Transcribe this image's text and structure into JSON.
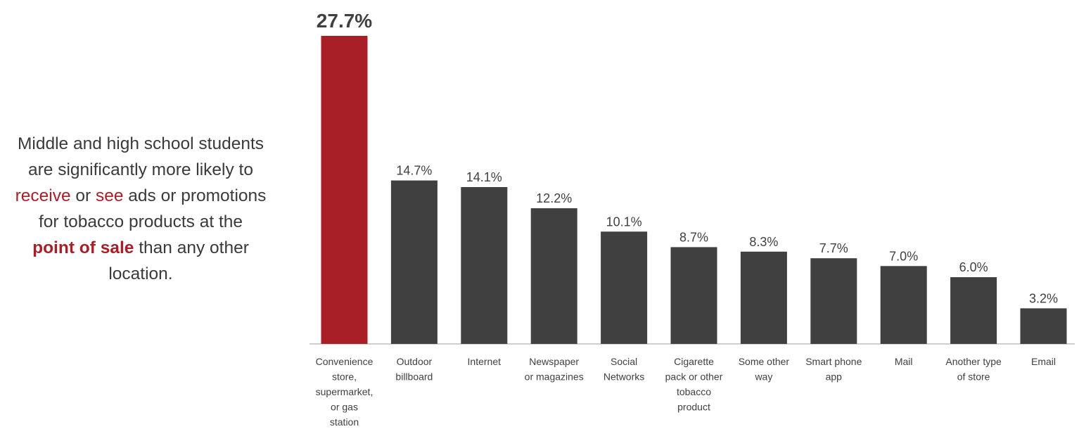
{
  "callout": {
    "line1": "Middle and high school students",
    "line2": "are significantly more likely to",
    "line3_word1": "receive",
    "line3_mid": " or ",
    "line3_word2": "see",
    "line3_rest": " ads or promotions",
    "line4": "for tobacco products at the",
    "line5_bold": "point of sale",
    "line5_rest": " than any other",
    "line6": "location."
  },
  "colors": {
    "highlight": "#a81f28",
    "bar": "#404040",
    "axis": "#bfbfbf",
    "text": "#404040"
  },
  "chart_data": {
    "type": "bar",
    "categories": [
      [
        "Convenience",
        "store,",
        "supermarket,",
        "or gas",
        "station"
      ],
      [
        "Outdoor",
        "billboard"
      ],
      [
        "Internet"
      ],
      [
        "Newspaper",
        "or magazines"
      ],
      [
        "Social",
        "Networks"
      ],
      [
        "Cigarette",
        "pack or other",
        "tobacco",
        "product"
      ],
      [
        "Some other",
        "way"
      ],
      [
        "Smart phone",
        "app"
      ],
      [
        "Mail"
      ],
      [
        "Another type",
        "of store"
      ],
      [
        "Email"
      ]
    ],
    "values": [
      27.7,
      14.7,
      14.1,
      12.2,
      10.1,
      8.7,
      8.3,
      7.7,
      7.0,
      6.0,
      3.2
    ],
    "labels": [
      "27.7%",
      "14.7%",
      "14.1%",
      "12.2%",
      "10.1%",
      "8.7%",
      "8.3%",
      "7.7%",
      "7.0%",
      "6.0%",
      "3.2%"
    ],
    "highlight_index": 0,
    "ylim": [
      0,
      27.7
    ],
    "grid": false,
    "title": "",
    "xlabel": "",
    "ylabel": ""
  }
}
